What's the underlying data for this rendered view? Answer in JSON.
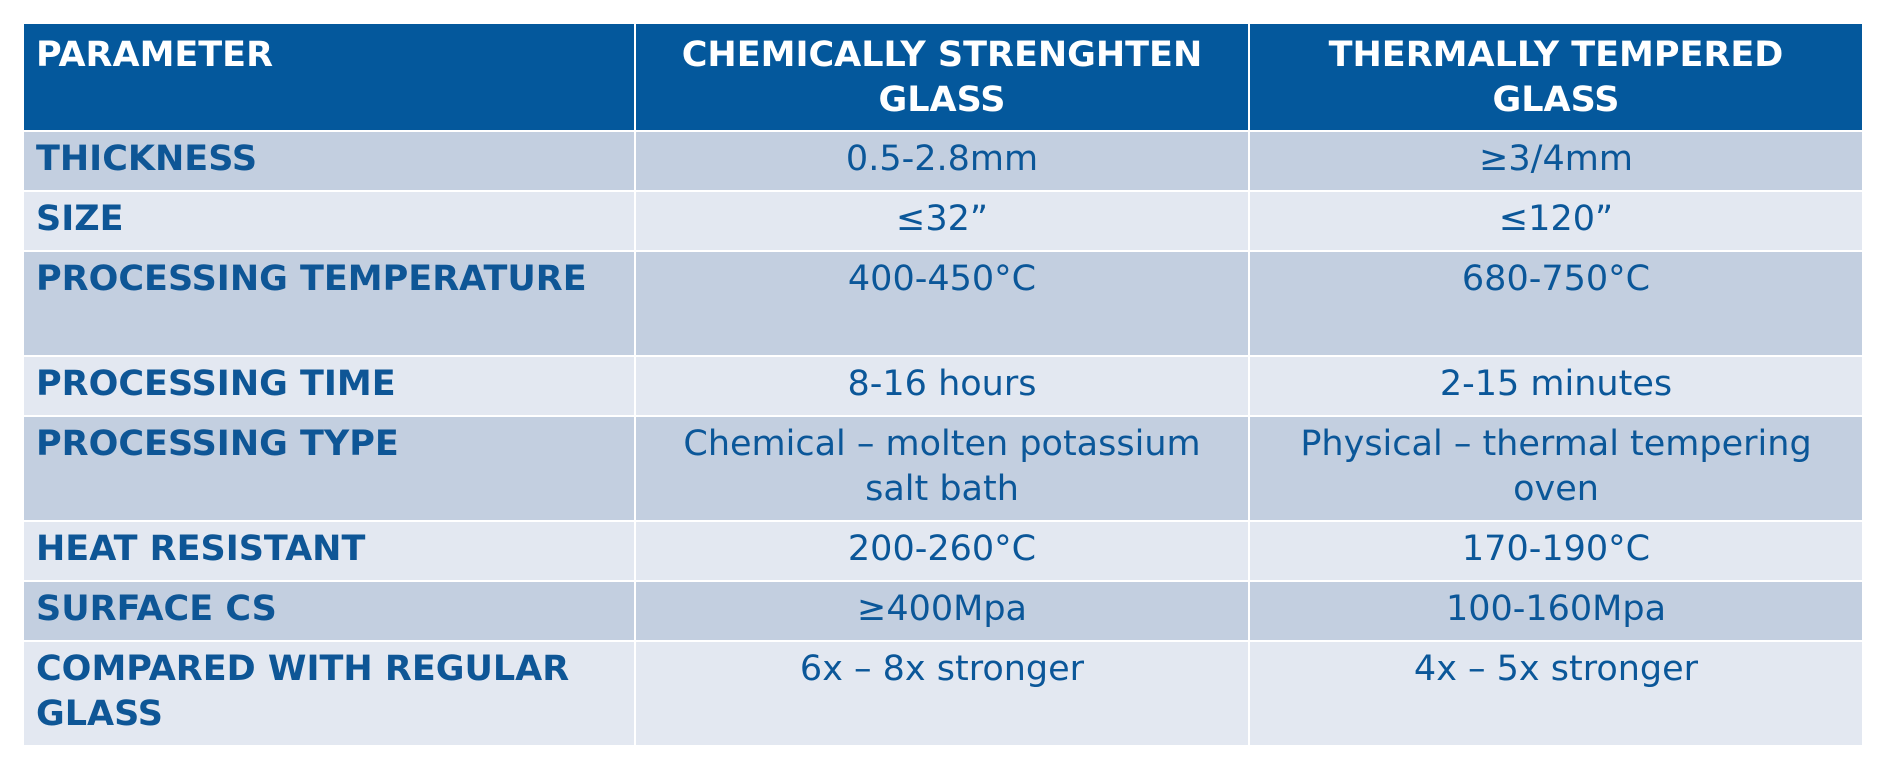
{
  "header": {
    "col1": "PARAMETER",
    "col2_line1": "CHEMICALLY STRENGHTEN",
    "col2_line2": "GLASS",
    "col3_line1": "THERMALLY TEMPERED",
    "col3_line2": "GLASS"
  },
  "rows": [
    {
      "param": "THICKNESS",
      "chem": "0.5-2.8mm",
      "thermal": "≥3/4mm"
    },
    {
      "param": "SIZE",
      "chem": "≤32”",
      "thermal": "≤120”"
    },
    {
      "param": "PROCESSING TEMPERATURE",
      "chem": "400-450°C",
      "thermal": "680-750°C"
    },
    {
      "param": "PROCESSING TIME",
      "chem": "8-16 hours",
      "thermal": "2-15 minutes"
    },
    {
      "param": "PROCESSING TYPE",
      "chem": "Chemical – molten potassium salt bath",
      "thermal": "Physical – thermal tempering oven"
    },
    {
      "param": "HEAT RESISTANT",
      "chem": "200-260°C",
      "thermal": "170-190°C"
    },
    {
      "param": "SURFACE CS",
      "chem": "≥400Mpa",
      "thermal": "100-160Mpa"
    },
    {
      "param": "COMPARED WITH REGULAR GLASS",
      "chem": "6x – 8x stronger",
      "thermal": "4x – 5x stronger"
    }
  ],
  "colors": {
    "header_bg": "#04589c",
    "row_dark": "#c3cfe0",
    "row_light": "#e3e8f1",
    "text": "#0b5799"
  }
}
